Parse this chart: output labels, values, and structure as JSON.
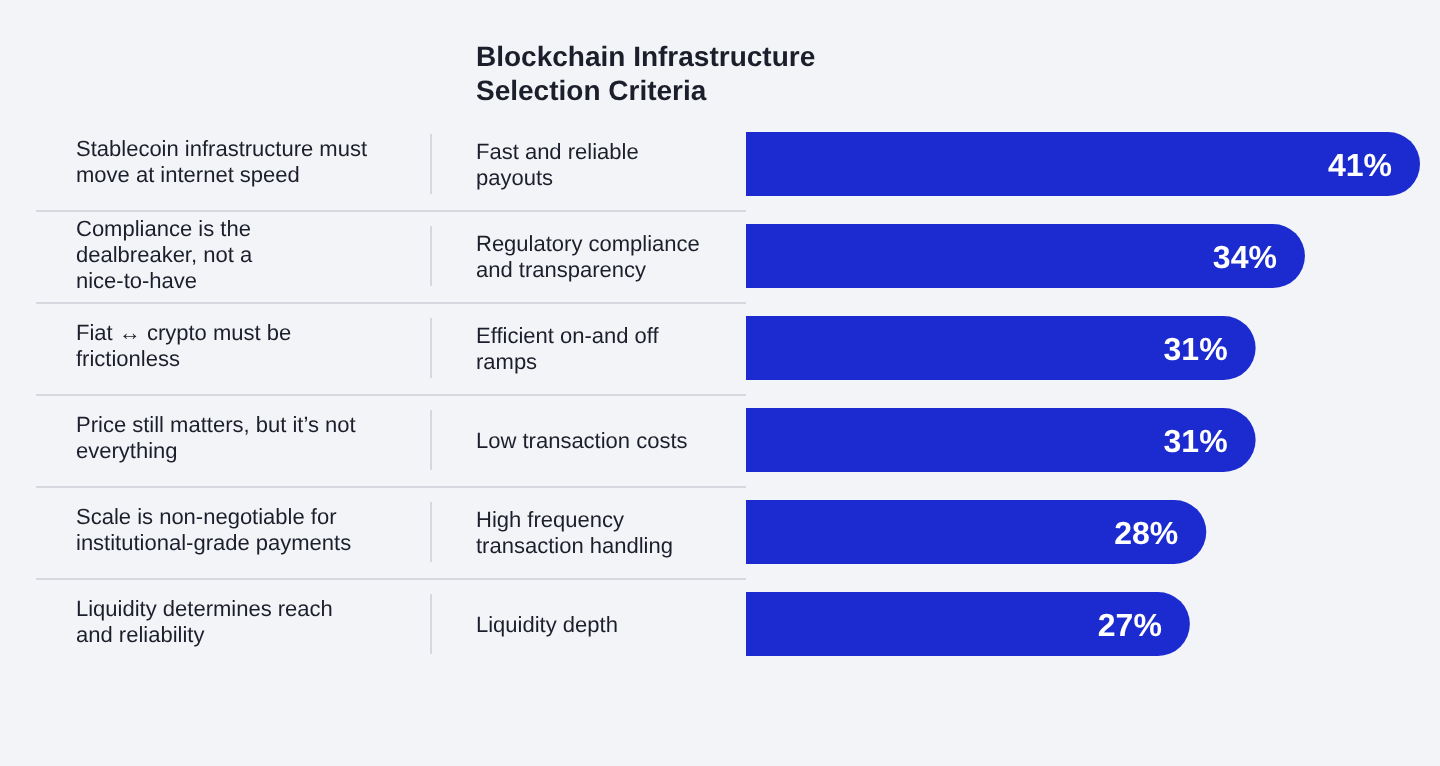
{
  "chart_data": {
    "type": "bar",
    "orientation": "horizontal",
    "title": "Blockchain Infrastructure Selection Criteria",
    "categories": [
      "Fast and reliable payouts",
      "Regulatory compliance and transparency",
      "Efficient on-and off ramps",
      "Low transaction costs",
      "High frequency transaction handling",
      "Liquidity depth"
    ],
    "values": [
      41,
      34,
      31,
      31,
      28,
      27
    ],
    "value_labels": [
      "41%",
      "34%",
      "31%",
      "31%",
      "28%",
      "27%"
    ],
    "color": "#1b2bd0",
    "annotations": [
      "Stablecoin infrastructure must move at internet speed",
      "Compliance is the dealbreaker, not a nice-to-have",
      "Fiat ↔ crypto must be frictionless",
      "Price still matters, but it’s not everything",
      "Scale is non-negotiable for institutional-grade payments",
      "Liquidity determines reach and reliability"
    ]
  }
}
